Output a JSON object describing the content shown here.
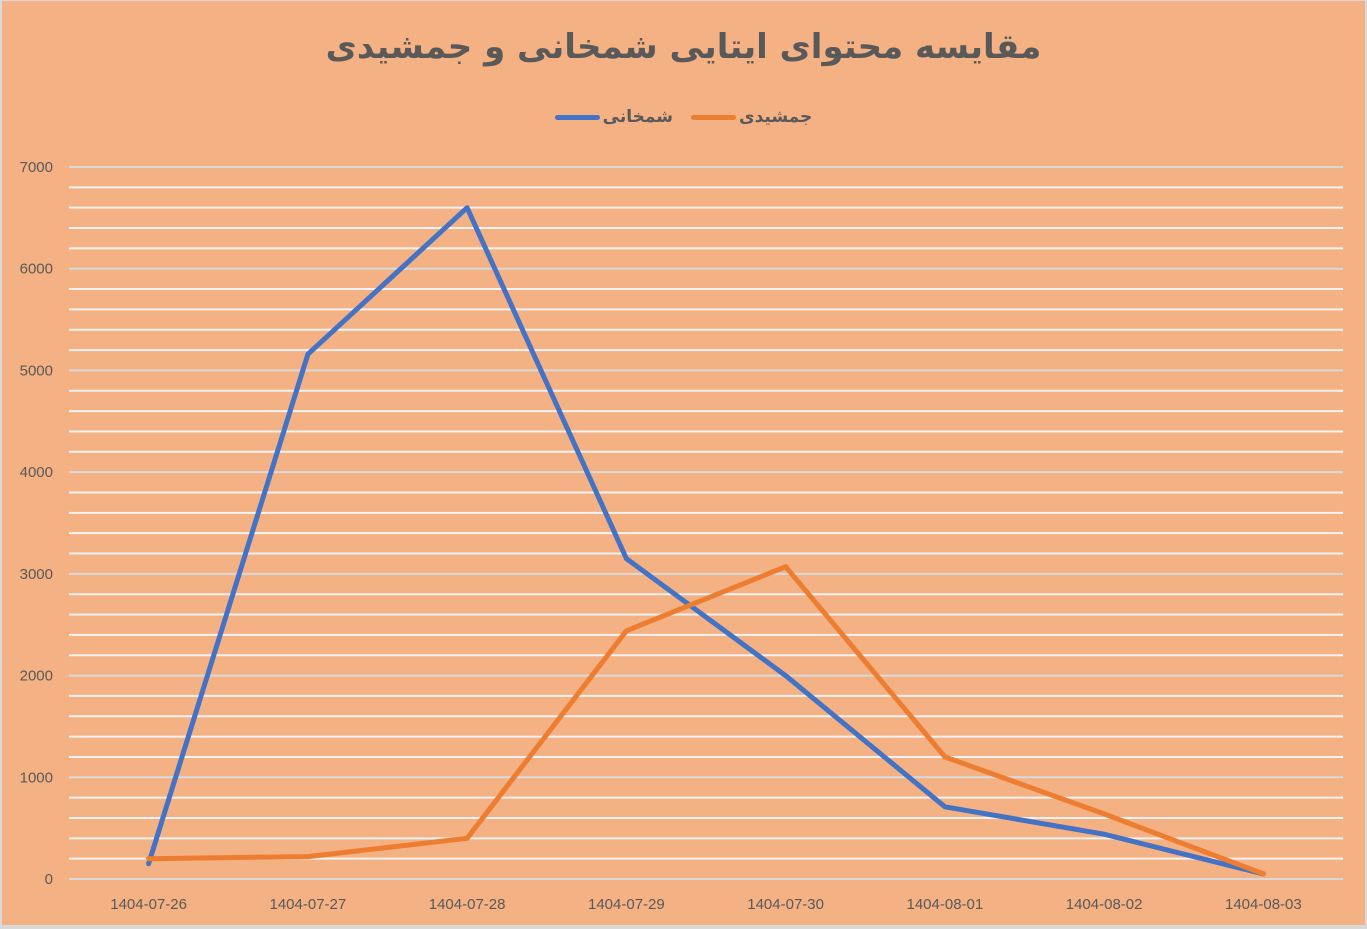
{
  "chart_data": {
    "type": "line",
    "title": "مقایسه محتوای ایتایی شمخانی و جمشیدی",
    "xlabel": "",
    "ylabel": "",
    "categories": [
      "1404-07-26",
      "1404-07-27",
      "1404-07-28",
      "1404-07-29",
      "1404-07-30",
      "1404-08-01",
      "1404-08-02",
      "1404-08-03"
    ],
    "series": [
      {
        "name": "شمخانی",
        "color": "#4472c4",
        "values": [
          150,
          5160,
          6600,
          3150,
          2000,
          710,
          440,
          50
        ]
      },
      {
        "name": "جمشیدی",
        "color": "#ed7d31",
        "values": [
          200,
          220,
          400,
          2440,
          3070,
          1200,
          640,
          50
        ]
      }
    ],
    "ylim": [
      0,
      7000
    ],
    "yticks": [
      0,
      1000,
      2000,
      3000,
      4000,
      5000,
      6000,
      7000
    ],
    "major_gridline_step": 1000,
    "minor_gridline_step": 200,
    "grid": true,
    "legend_position": "top"
  },
  "colors": {
    "background": "#f4b183",
    "major_grid": "#d9d9d9",
    "minor_grid": "#f2f2f2",
    "text": "#595959"
  }
}
